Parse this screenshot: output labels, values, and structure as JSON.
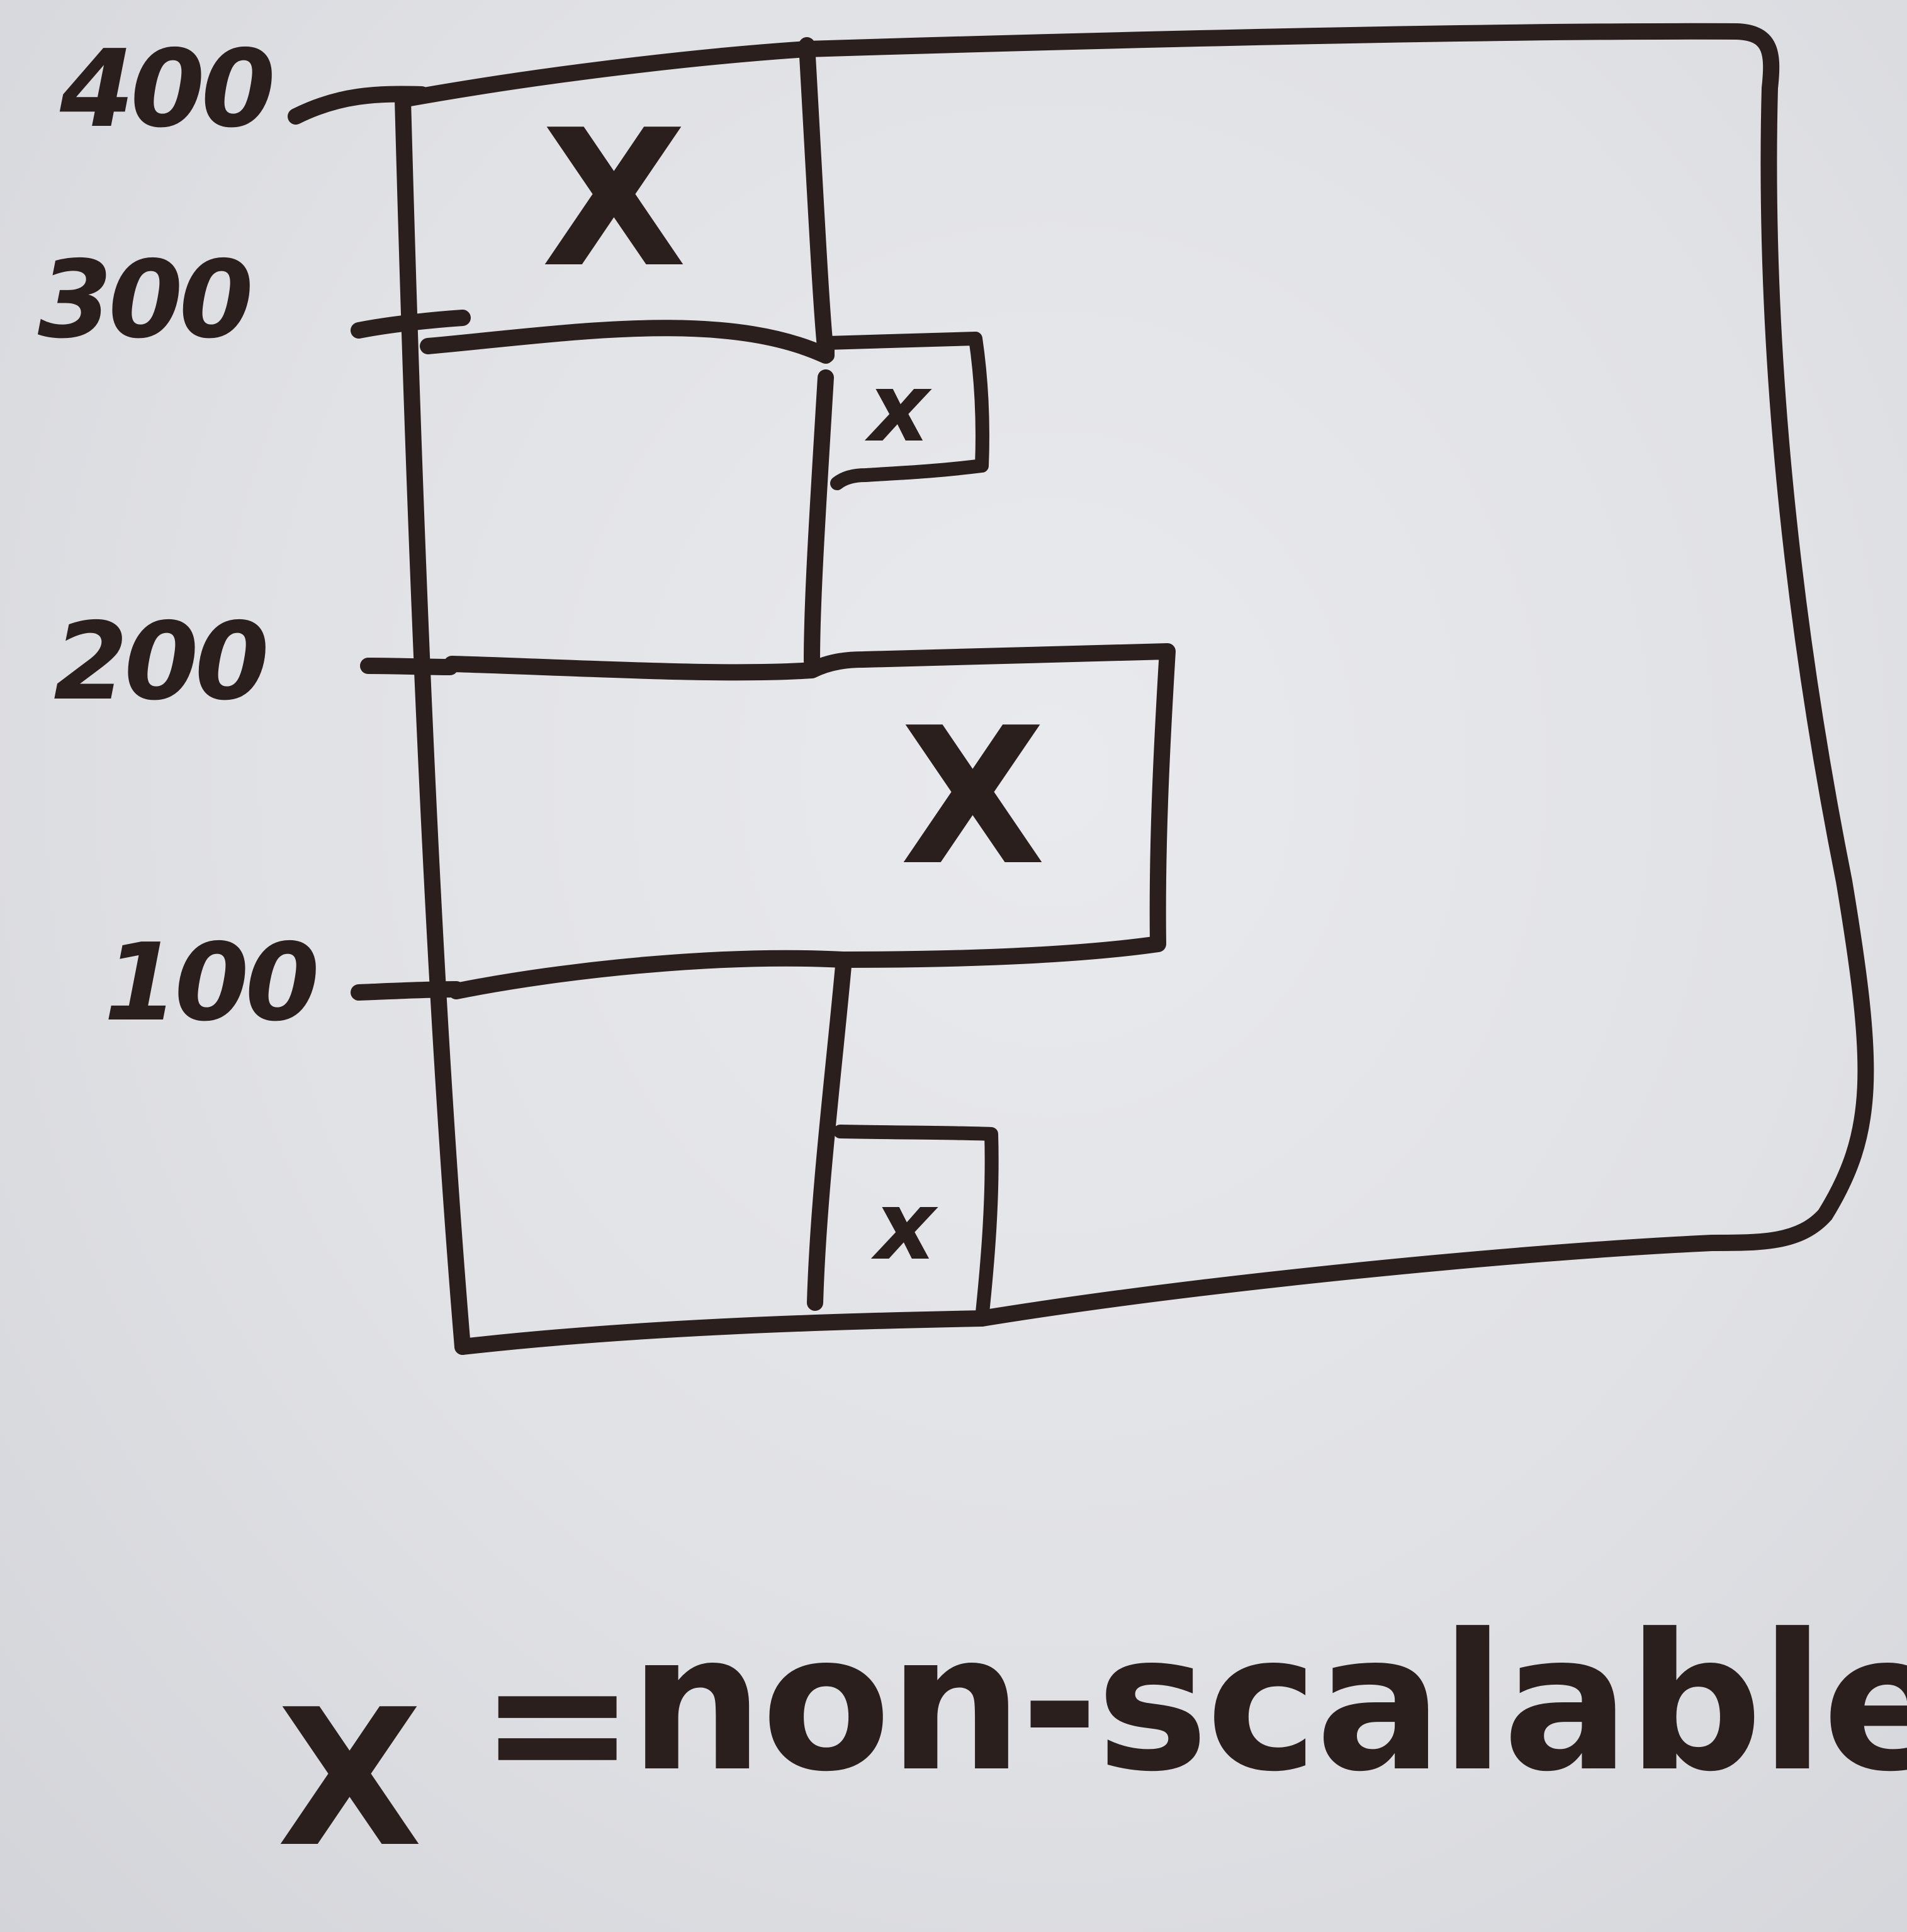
{
  "axis": {
    "ticks": [
      "400",
      "300",
      "200",
      "100"
    ]
  },
  "cells": [
    {
      "band": "300-400",
      "column": "left",
      "mark": "X"
    },
    {
      "band": "200-300",
      "column": "right",
      "mark": "x"
    },
    {
      "band": "100-200",
      "column": "right",
      "mark": "X"
    },
    {
      "band": "0-100",
      "column": "right",
      "mark": "x"
    }
  ],
  "legend": {
    "symbol": "X",
    "equals": "=",
    "label": "non-scalable"
  },
  "colors": {
    "ink": "#2a1f1c",
    "board": "#e0e1e5"
  }
}
